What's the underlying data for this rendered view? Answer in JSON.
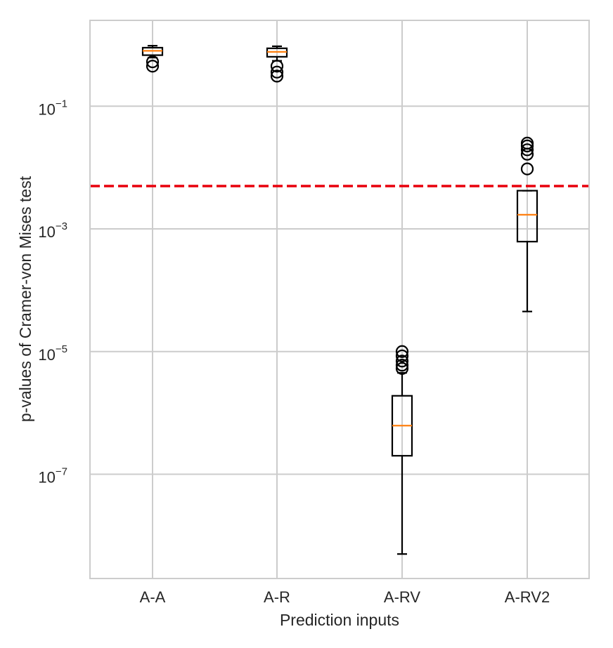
{
  "chart_data": {
    "type": "box",
    "title": "",
    "xlabel": "Prediction inputs",
    "ylabel": "p-values of Cramer-von Mises test",
    "yscale": "log",
    "ylim_log10": [
      -8.7,
      0.4
    ],
    "yticks": [
      {
        "base": "10",
        "exp": "−1",
        "log10": -1
      },
      {
        "base": "10",
        "exp": "−3",
        "log10": -3
      },
      {
        "base": "10",
        "exp": "−5",
        "log10": -5
      },
      {
        "base": "10",
        "exp": "−7",
        "log10": -7
      }
    ],
    "categories": [
      "A-A",
      "A-R",
      "A-RV",
      "A-RV2"
    ],
    "threshold": {
      "value": 0.005,
      "color": "#e8000b",
      "style": "dashed"
    },
    "grid": true,
    "boxes": [
      {
        "label": "A-A",
        "q1": 0.68,
        "median": 0.8,
        "q3": 0.9,
        "whisker_low": 0.62,
        "whisker_high": 0.97,
        "fliers": [
          0.45,
          0.53
        ]
      },
      {
        "label": "A-R",
        "q1": 0.64,
        "median": 0.77,
        "q3": 0.88,
        "whisker_low": 0.55,
        "whisker_high": 0.95,
        "fliers": [
          0.31,
          0.36,
          0.45
        ]
      },
      {
        "label": "A-RV",
        "q1": 2e-07,
        "median": 6.2e-07,
        "q3": 1.9e-06,
        "whisker_low": 5e-09,
        "whisker_high": 4.5e-06,
        "fliers": [
          5.3e-06,
          6e-06,
          7e-06,
          8.5e-06,
          1e-05
        ]
      },
      {
        "label": "A-RV2",
        "q1": 0.00062,
        "median": 0.0017,
        "q3": 0.0042,
        "whisker_low": 4.5e-05,
        "whisker_high": 0.0042,
        "fliers": [
          0.0095,
          0.0165,
          0.0195,
          0.0225,
          0.025
        ]
      }
    ],
    "colors": {
      "box": "#000000",
      "median": "#ff7f0e",
      "grid": "#cccccc",
      "frame": "#cccccc"
    }
  }
}
